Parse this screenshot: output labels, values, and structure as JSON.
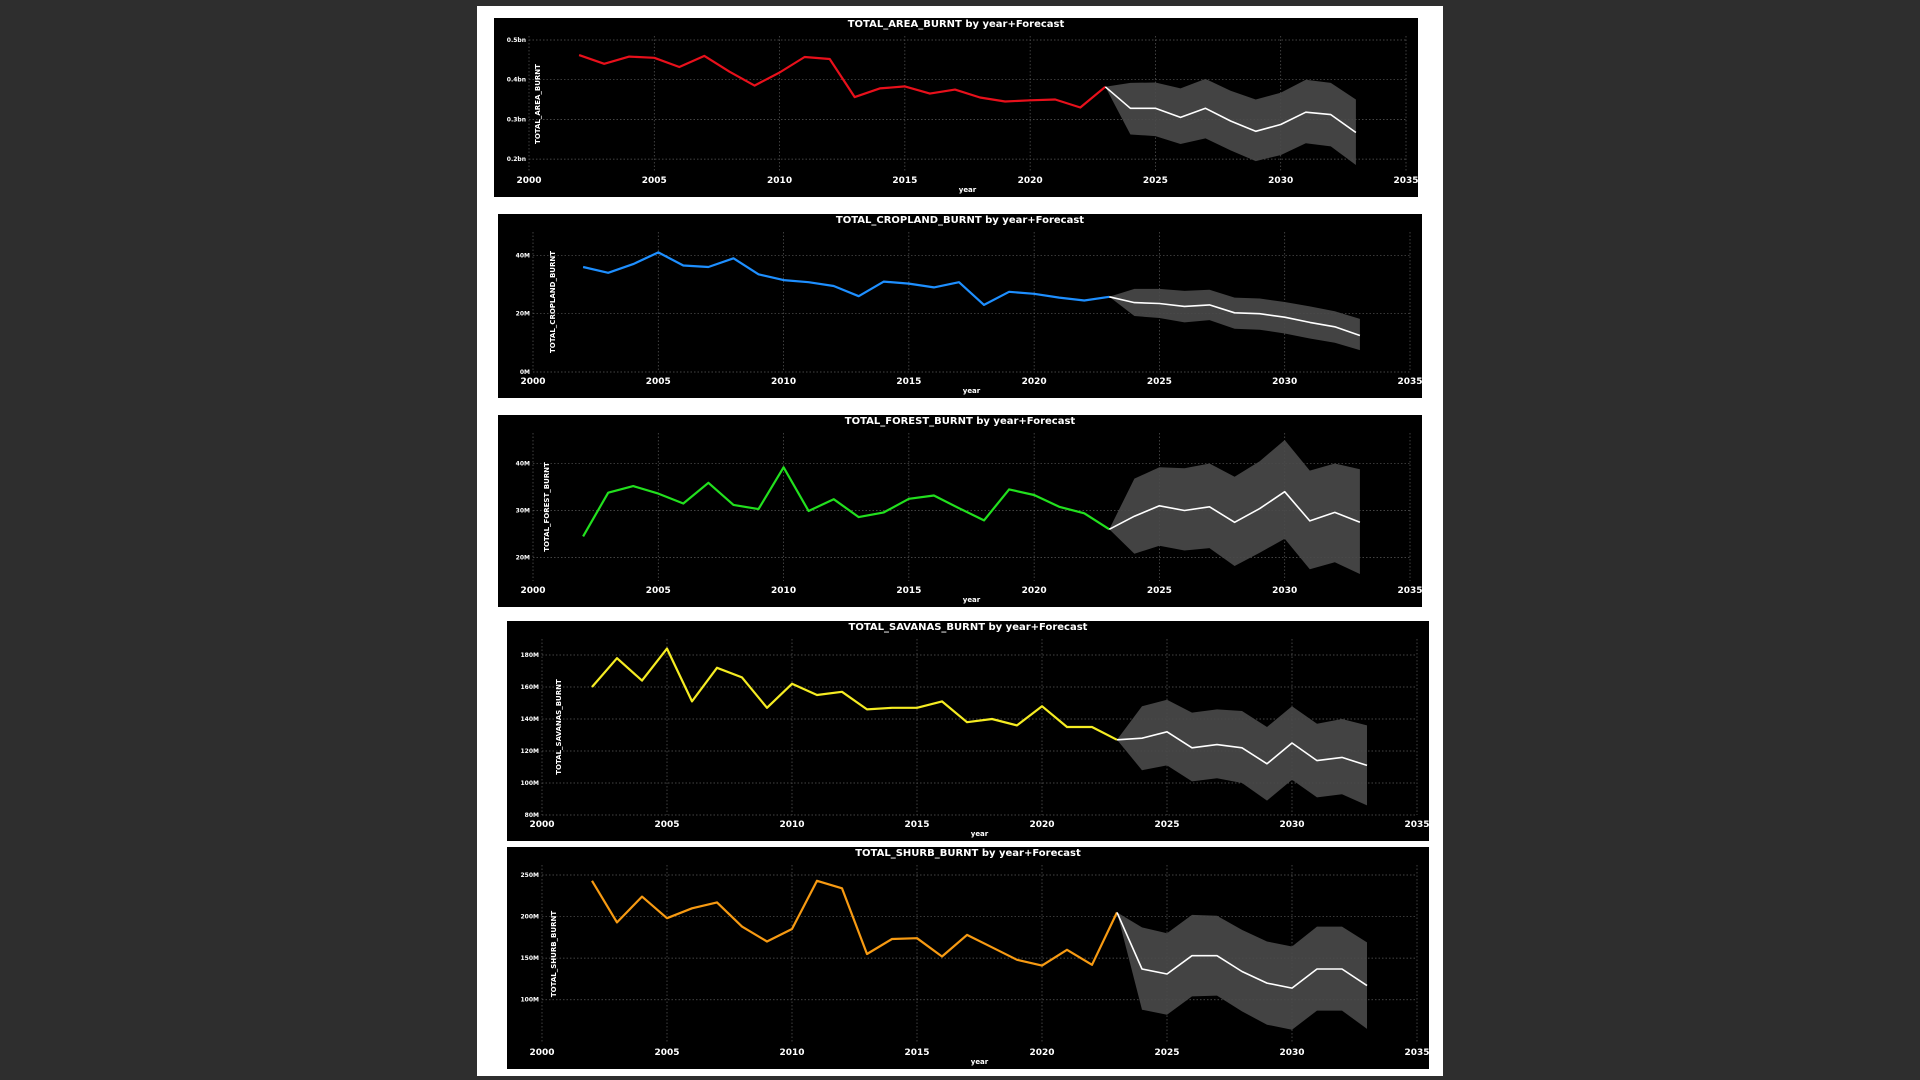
{
  "chart_data": [
    {
      "type": "line",
      "title": "TOTAL_AREA_BURNT by year+Forecast",
      "xlabel": "year",
      "ylabel": "TOTAL_AREA_BURNT",
      "color": "#e8101b",
      "xlim": [
        2000,
        2035
      ],
      "xticks": [
        2000,
        2005,
        2010,
        2015,
        2020,
        2025,
        2030,
        2035
      ],
      "ylim": [
        0.17,
        0.51
      ],
      "yticks": [
        0.2,
        0.3,
        0.4,
        0.5
      ],
      "ytick_labels": [
        "0.2bn",
        "0.3bn",
        "0.4bn",
        "0.5bn"
      ],
      "x": [
        2002,
        2003,
        2004,
        2005,
        2006,
        2007,
        2008,
        2009,
        2010,
        2011,
        2012,
        2013,
        2014,
        2015,
        2016,
        2017,
        2018,
        2019,
        2020,
        2021,
        2022,
        2023
      ],
      "values": [
        0.462,
        0.44,
        0.458,
        0.455,
        0.432,
        0.46,
        0.42,
        0.385,
        0.418,
        0.457,
        0.452,
        0.356,
        0.378,
        0.383,
        0.365,
        0.375,
        0.355,
        0.345,
        0.348,
        0.35,
        0.33,
        0.382
      ],
      "forecast": {
        "x": [
          2023,
          2024,
          2025,
          2026,
          2027,
          2028,
          2029,
          2030,
          2031,
          2032,
          2033
        ],
        "values": [
          0.382,
          0.328,
          0.328,
          0.305,
          0.328,
          0.296,
          0.27,
          0.287,
          0.318,
          0.312,
          0.267
        ],
        "upper": [
          0.382,
          0.392,
          0.393,
          0.378,
          0.402,
          0.372,
          0.35,
          0.367,
          0.4,
          0.392,
          0.35
        ],
        "lower": [
          0.382,
          0.262,
          0.258,
          0.238,
          0.252,
          0.222,
          0.195,
          0.21,
          0.24,
          0.232,
          0.185
        ]
      }
    },
    {
      "type": "line",
      "title": "TOTAL_CROPLAND_BURNT by year+Forecast",
      "xlabel": "year",
      "ylabel": "TOTAL_CROPLAND_BURNT",
      "color": "#1e8fff",
      "xlim": [
        2000,
        2035
      ],
      "xticks": [
        2000,
        2005,
        2010,
        2015,
        2020,
        2025,
        2030,
        2035
      ],
      "ylim": [
        0,
        48
      ],
      "yticks": [
        0,
        20,
        40
      ],
      "ytick_labels": [
        "0M",
        "20M",
        "40M"
      ],
      "x": [
        2002,
        2003,
        2004,
        2005,
        2006,
        2007,
        2008,
        2009,
        2010,
        2011,
        2012,
        2013,
        2014,
        2015,
        2016,
        2017,
        2018,
        2019,
        2020,
        2021,
        2022,
        2023
      ],
      "values": [
        36,
        34,
        37,
        41,
        36.5,
        36,
        39,
        33.5,
        31.5,
        30.8,
        29.5,
        26,
        31,
        30.3,
        29,
        30.8,
        23,
        27.5,
        26.8,
        25.5,
        24.5,
        25.8
      ],
      "forecast": {
        "x": [
          2023,
          2024,
          2025,
          2026,
          2027,
          2028,
          2029,
          2030,
          2031,
          2032,
          2033
        ],
        "values": [
          25.8,
          23.8,
          23.5,
          22.5,
          23.0,
          20.3,
          20.0,
          18.8,
          17.0,
          15.5,
          12.5
        ],
        "upper": [
          25.8,
          28.5,
          28.5,
          27.8,
          28.2,
          25.5,
          25.2,
          24.0,
          22.5,
          20.8,
          18.2
        ],
        "lower": [
          25.8,
          19.2,
          18.5,
          17.0,
          17.8,
          14.8,
          14.5,
          13.2,
          11.5,
          10.0,
          7.5
        ]
      }
    },
    {
      "type": "line",
      "title": "TOTAL_FOREST_BURNT by year+Forecast",
      "xlabel": "year",
      "ylabel": "TOTAL_FOREST_BURNT",
      "color": "#22e01e",
      "xlim": [
        2000,
        2035
      ],
      "xticks": [
        2000,
        2005,
        2010,
        2015,
        2020,
        2025,
        2030,
        2035
      ],
      "ylim": [
        15,
        46.5
      ],
      "yticks": [
        20,
        30,
        40
      ],
      "ytick_labels": [
        "20M",
        "30M",
        "40M"
      ],
      "x": [
        2002,
        2003,
        2004,
        2005,
        2006,
        2007,
        2008,
        2009,
        2010,
        2011,
        2012,
        2013,
        2014,
        2015,
        2016,
        2017,
        2018,
        2019,
        2020,
        2021,
        2022,
        2023
      ],
      "values": [
        24.5,
        33.8,
        35.2,
        33.6,
        31.5,
        35.9,
        31.2,
        30.3,
        39.2,
        29.9,
        32.4,
        28.6,
        29.6,
        32.5,
        33.2,
        30.5,
        27.9,
        34.5,
        33.3,
        30.8,
        29.4,
        26.0
      ],
      "forecast": {
        "x": [
          2023,
          2024,
          2025,
          2026,
          2027,
          2028,
          2029,
          2030,
          2031,
          2032,
          2033
        ],
        "values": [
          26.0,
          28.8,
          31.0,
          30.0,
          30.8,
          27.5,
          30.4,
          34.0,
          27.8,
          29.6,
          27.5
        ],
        "upper": [
          26.0,
          36.8,
          39.2,
          39.0,
          40.0,
          37.2,
          40.5,
          45.0,
          38.5,
          40.0,
          38.8
        ],
        "lower": [
          26.0,
          20.8,
          22.5,
          21.5,
          22.0,
          18.2,
          21.0,
          24.0,
          17.5,
          19.0,
          16.5
        ]
      }
    },
    {
      "type": "line",
      "title": "TOTAL_SAVANAS_BURNT by year+Forecast",
      "xlabel": "year",
      "ylabel": "TOTAL_SAVANAS_BURNT",
      "color": "#f5ec22",
      "xlim": [
        2000,
        2035
      ],
      "xticks": [
        2000,
        2005,
        2010,
        2015,
        2020,
        2025,
        2030,
        2035
      ],
      "ylim": [
        80,
        190
      ],
      "yticks": [
        80,
        100,
        120,
        140,
        160,
        180
      ],
      "ytick_labels": [
        "80M",
        "100M",
        "120M",
        "140M",
        "160M",
        "180M"
      ],
      "x": [
        2002,
        2003,
        2004,
        2005,
        2006,
        2007,
        2008,
        2009,
        2010,
        2011,
        2012,
        2013,
        2014,
        2015,
        2016,
        2017,
        2018,
        2019,
        2020,
        2021,
        2022,
        2023
      ],
      "values": [
        160,
        178,
        164,
        184,
        151,
        172,
        166,
        147,
        162,
        155,
        157,
        146,
        147,
        147,
        151,
        138,
        140,
        136,
        148,
        135,
        135,
        127
      ],
      "forecast": {
        "x": [
          2023,
          2024,
          2025,
          2026,
          2027,
          2028,
          2029,
          2030,
          2031,
          2032,
          2033
        ],
        "values": [
          127,
          128,
          132,
          122,
          124,
          122,
          112,
          125,
          114,
          116,
          111
        ],
        "upper": [
          127,
          148,
          152,
          144,
          146,
          145,
          135,
          148,
          137,
          140,
          136
        ],
        "lower": [
          127,
          108,
          111,
          101,
          103,
          100,
          89,
          102,
          91,
          93,
          86
        ]
      }
    },
    {
      "type": "line",
      "title": "TOTAL_SHURB_BURNT by year+Forecast",
      "xlabel": "year",
      "ylabel": "TOTAL_SHURB_BURNT",
      "color": "#f79a12",
      "xlim": [
        2000,
        2035
      ],
      "xticks": [
        2000,
        2005,
        2010,
        2015,
        2020,
        2025,
        2030,
        2035
      ],
      "ylim": [
        48,
        262
      ],
      "yticks": [
        100,
        150,
        200,
        250
      ],
      "ytick_labels": [
        "100M",
        "150M",
        "200M",
        "250M"
      ],
      "x": [
        2002,
        2003,
        2004,
        2005,
        2006,
        2007,
        2008,
        2009,
        2010,
        2011,
        2012,
        2013,
        2014,
        2015,
        2016,
        2017,
        2018,
        2019,
        2020,
        2021,
        2022,
        2023
      ],
      "values": [
        243,
        193,
        224,
        198,
        210,
        217,
        188,
        170,
        185,
        243,
        234,
        155,
        173,
        174,
        152,
        178,
        163,
        148,
        141,
        160,
        142,
        205
      ],
      "forecast": {
        "x": [
          2023,
          2024,
          2025,
          2026,
          2027,
          2028,
          2029,
          2030,
          2031,
          2032,
          2033
        ],
        "values": [
          205,
          137,
          131,
          153,
          153,
          134,
          120,
          114,
          137,
          137,
          117
        ],
        "upper": [
          205,
          187,
          180,
          202,
          201,
          184,
          170,
          164,
          188,
          188,
          169
        ],
        "lower": [
          205,
          88,
          82,
          104,
          105,
          86,
          70,
          64,
          87,
          87,
          65
        ]
      }
    }
  ]
}
